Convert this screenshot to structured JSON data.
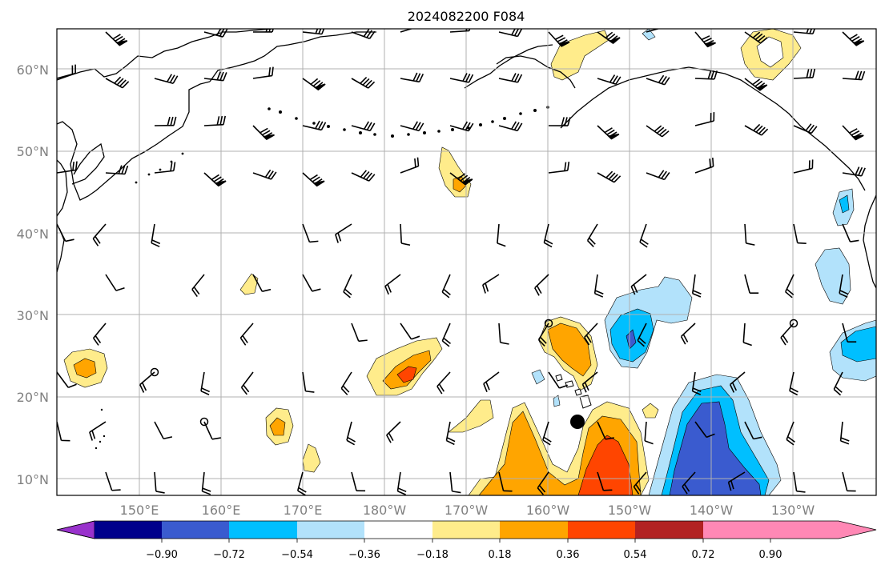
{
  "title": "2024082200 F084",
  "map": {
    "latitude_labels": [
      "10°N",
      "20°N",
      "30°N",
      "40°N",
      "50°N",
      "60°N"
    ],
    "longitude_labels": [
      "150°E",
      "160°E",
      "170°E",
      "180°W",
      "170°W",
      "160°W",
      "150°W",
      "140°W",
      "130°W"
    ],
    "label_color": "#808080",
    "grid_color": "#b0b0b0"
  },
  "colorbar": {
    "tick_labels": [
      "−0.90",
      "−0.72",
      "−0.54",
      "−0.36",
      "−0.18",
      "0.18",
      "0.36",
      "0.54",
      "0.72",
      "0.90"
    ],
    "colors": [
      "#9932cc",
      "#00008b",
      "#3a5bcf",
      "#00bfff",
      "#b2e2fb",
      "#ffffff",
      "#ffec8b",
      "#ffa500",
      "#ff4500",
      "#b22222",
      "#ff88b5"
    ]
  },
  "markers": {
    "storm_position": {
      "lat": 17,
      "lon": -156.5
    }
  }
}
